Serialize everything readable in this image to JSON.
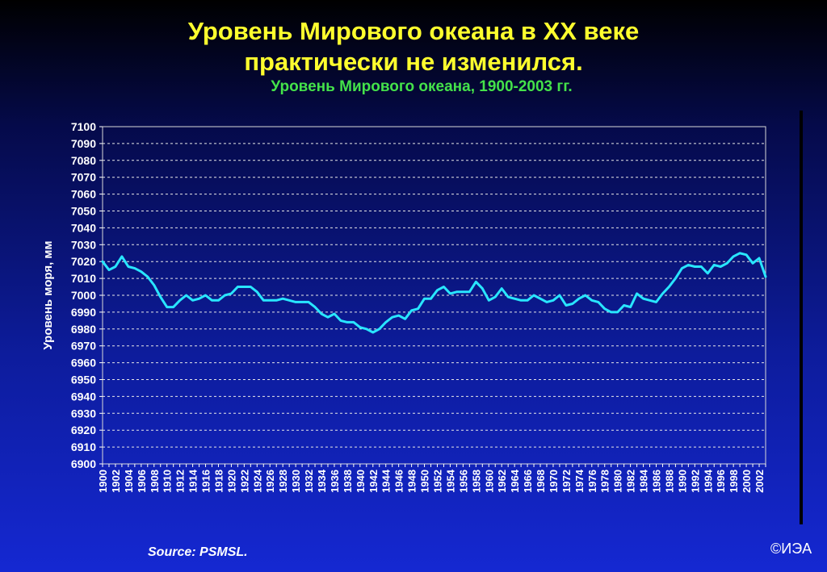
{
  "header": {
    "title_line1": "Уровень Мирового океана в XX веке",
    "title_line2": "практически не изменился.",
    "subtitle": "Уровень Мирового океана, 1900-2003 гг."
  },
  "footer": {
    "source": "Source: PSMSL.",
    "copyright": "©ИЭА"
  },
  "colors": {
    "title": "#ffff2e",
    "subtitle": "#44e24a",
    "line": "#29e6ff",
    "grid": "#e8e8e8"
  },
  "chart_data": {
    "type": "line",
    "title": "Уровень Мирового океана, 1900-2003 гг.",
    "xlabel": "",
    "ylabel": "Уровень моря, мм",
    "xlim": [
      1900,
      2003
    ],
    "ylim": [
      6900,
      7100
    ],
    "ytick_step": 10,
    "xtick_step": 2,
    "grid": true,
    "legend": "none",
    "series": [
      {
        "x": [
          1900,
          1901,
          1902,
          1903,
          1904,
          1905,
          1906,
          1907,
          1908,
          1909,
          1910,
          1911,
          1912,
          1913,
          1914,
          1915,
          1916,
          1917,
          1918,
          1919,
          1920,
          1921,
          1922,
          1923,
          1924,
          1925,
          1926,
          1927,
          1928,
          1929,
          1930,
          1931,
          1932,
          1933,
          1934,
          1935,
          1936,
          1937,
          1938,
          1939,
          1940,
          1941,
          1942,
          1943,
          1944,
          1945,
          1946,
          1947,
          1948,
          1949,
          1950,
          1951,
          1952,
          1953,
          1954,
          1955,
          1956,
          1957,
          1958,
          1959,
          1960,
          1961,
          1962,
          1963,
          1964,
          1965,
          1966,
          1967,
          1968,
          1969,
          1970,
          1971,
          1972,
          1973,
          1974,
          1975,
          1976,
          1977,
          1978,
          1979,
          1980,
          1981,
          1982,
          1983,
          1984,
          1985,
          1986,
          1987,
          1988,
          1989,
          1990,
          1991,
          1992,
          1993,
          1994,
          1995,
          1996,
          1997,
          1998,
          1999,
          2000,
          2001,
          2002,
          2003
        ],
        "y": [
          7020,
          7015,
          7017,
          7023,
          7017,
          7016,
          7014,
          7011,
          7006,
          6999,
          6993,
          6993,
          6997,
          7000,
          6997,
          6998,
          7000,
          6997,
          6997,
          7000,
          7001,
          7005,
          7005,
          7005,
          7002,
          6997,
          6997,
          6997,
          6998,
          6997,
          6996,
          6996,
          6996,
          6993,
          6989,
          6987,
          6989,
          6985,
          6984,
          6984,
          6981,
          6980,
          6978,
          6980,
          6984,
          6987,
          6988,
          6986,
          6991,
          6992,
          6998,
          6998,
          7003,
          7005,
          7001,
          7002,
          7002,
          7002,
          7008,
          7004,
          6997,
          6999,
          7004,
          6999,
          6998,
          6997,
          6997,
          7000,
          6998,
          6996,
          6997,
          7000,
          6994,
          6995,
          6998,
          7000,
          6997,
          6996,
          6992,
          6990,
          6990,
          6994,
          6993,
          7001,
          6998,
          6997,
          6996,
          7001,
          7005,
          7010,
          7016,
          7018,
          7017,
          7017,
          7013,
          7018,
          7017,
          7019,
          7023,
          7025,
          7024,
          7019,
          7022,
          7011
        ]
      }
    ]
  }
}
